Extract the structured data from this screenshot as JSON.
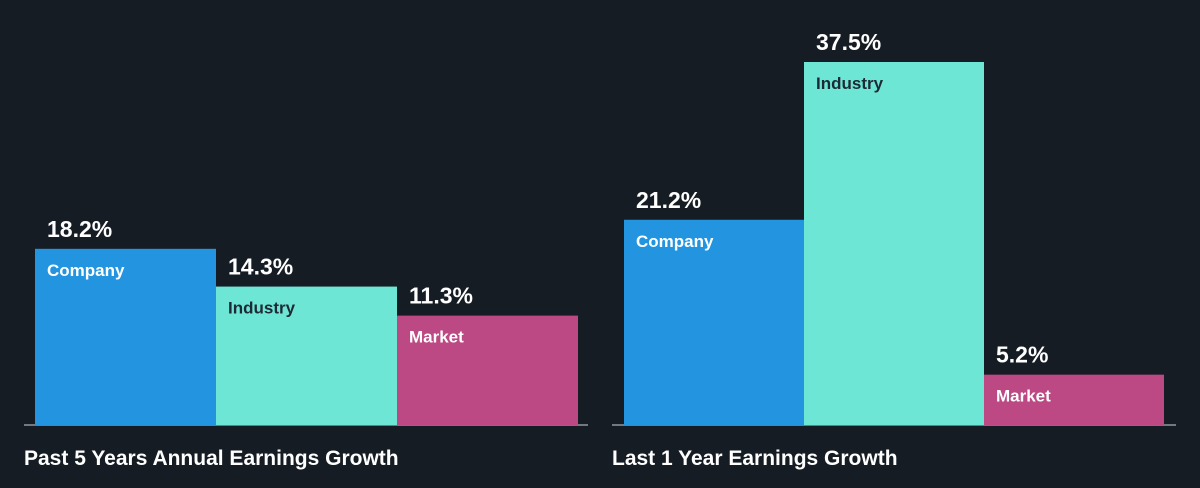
{
  "colors": {
    "background": "#161c24",
    "baseline": "#d0d4da",
    "Company": "#2394e0",
    "Industry": "#6de6d5",
    "Market": "#bc4983",
    "label_on_company": "#ffffff",
    "label_on_industry": "#1d2a36",
    "label_on_market": "#ffffff"
  },
  "chart_data": [
    {
      "type": "bar",
      "title": "Past 5 Years Annual Earnings Growth",
      "categories": [
        "Company",
        "Industry",
        "Market"
      ],
      "values": [
        18.2,
        14.3,
        11.3
      ],
      "value_labels": [
        "18.2%",
        "14.3%",
        "11.3%"
      ],
      "unit": "%",
      "ylim": [
        0,
        41.5
      ],
      "grid": false,
      "legend": "none"
    },
    {
      "type": "bar",
      "title": "Last 1 Year Earnings Growth",
      "categories": [
        "Company",
        "Industry",
        "Market"
      ],
      "values": [
        21.2,
        37.5,
        5.2
      ],
      "value_labels": [
        "21.2%",
        "37.5%",
        "5.2%"
      ],
      "unit": "%",
      "ylim": [
        0,
        41.5
      ],
      "grid": false,
      "legend": "none"
    }
  ]
}
